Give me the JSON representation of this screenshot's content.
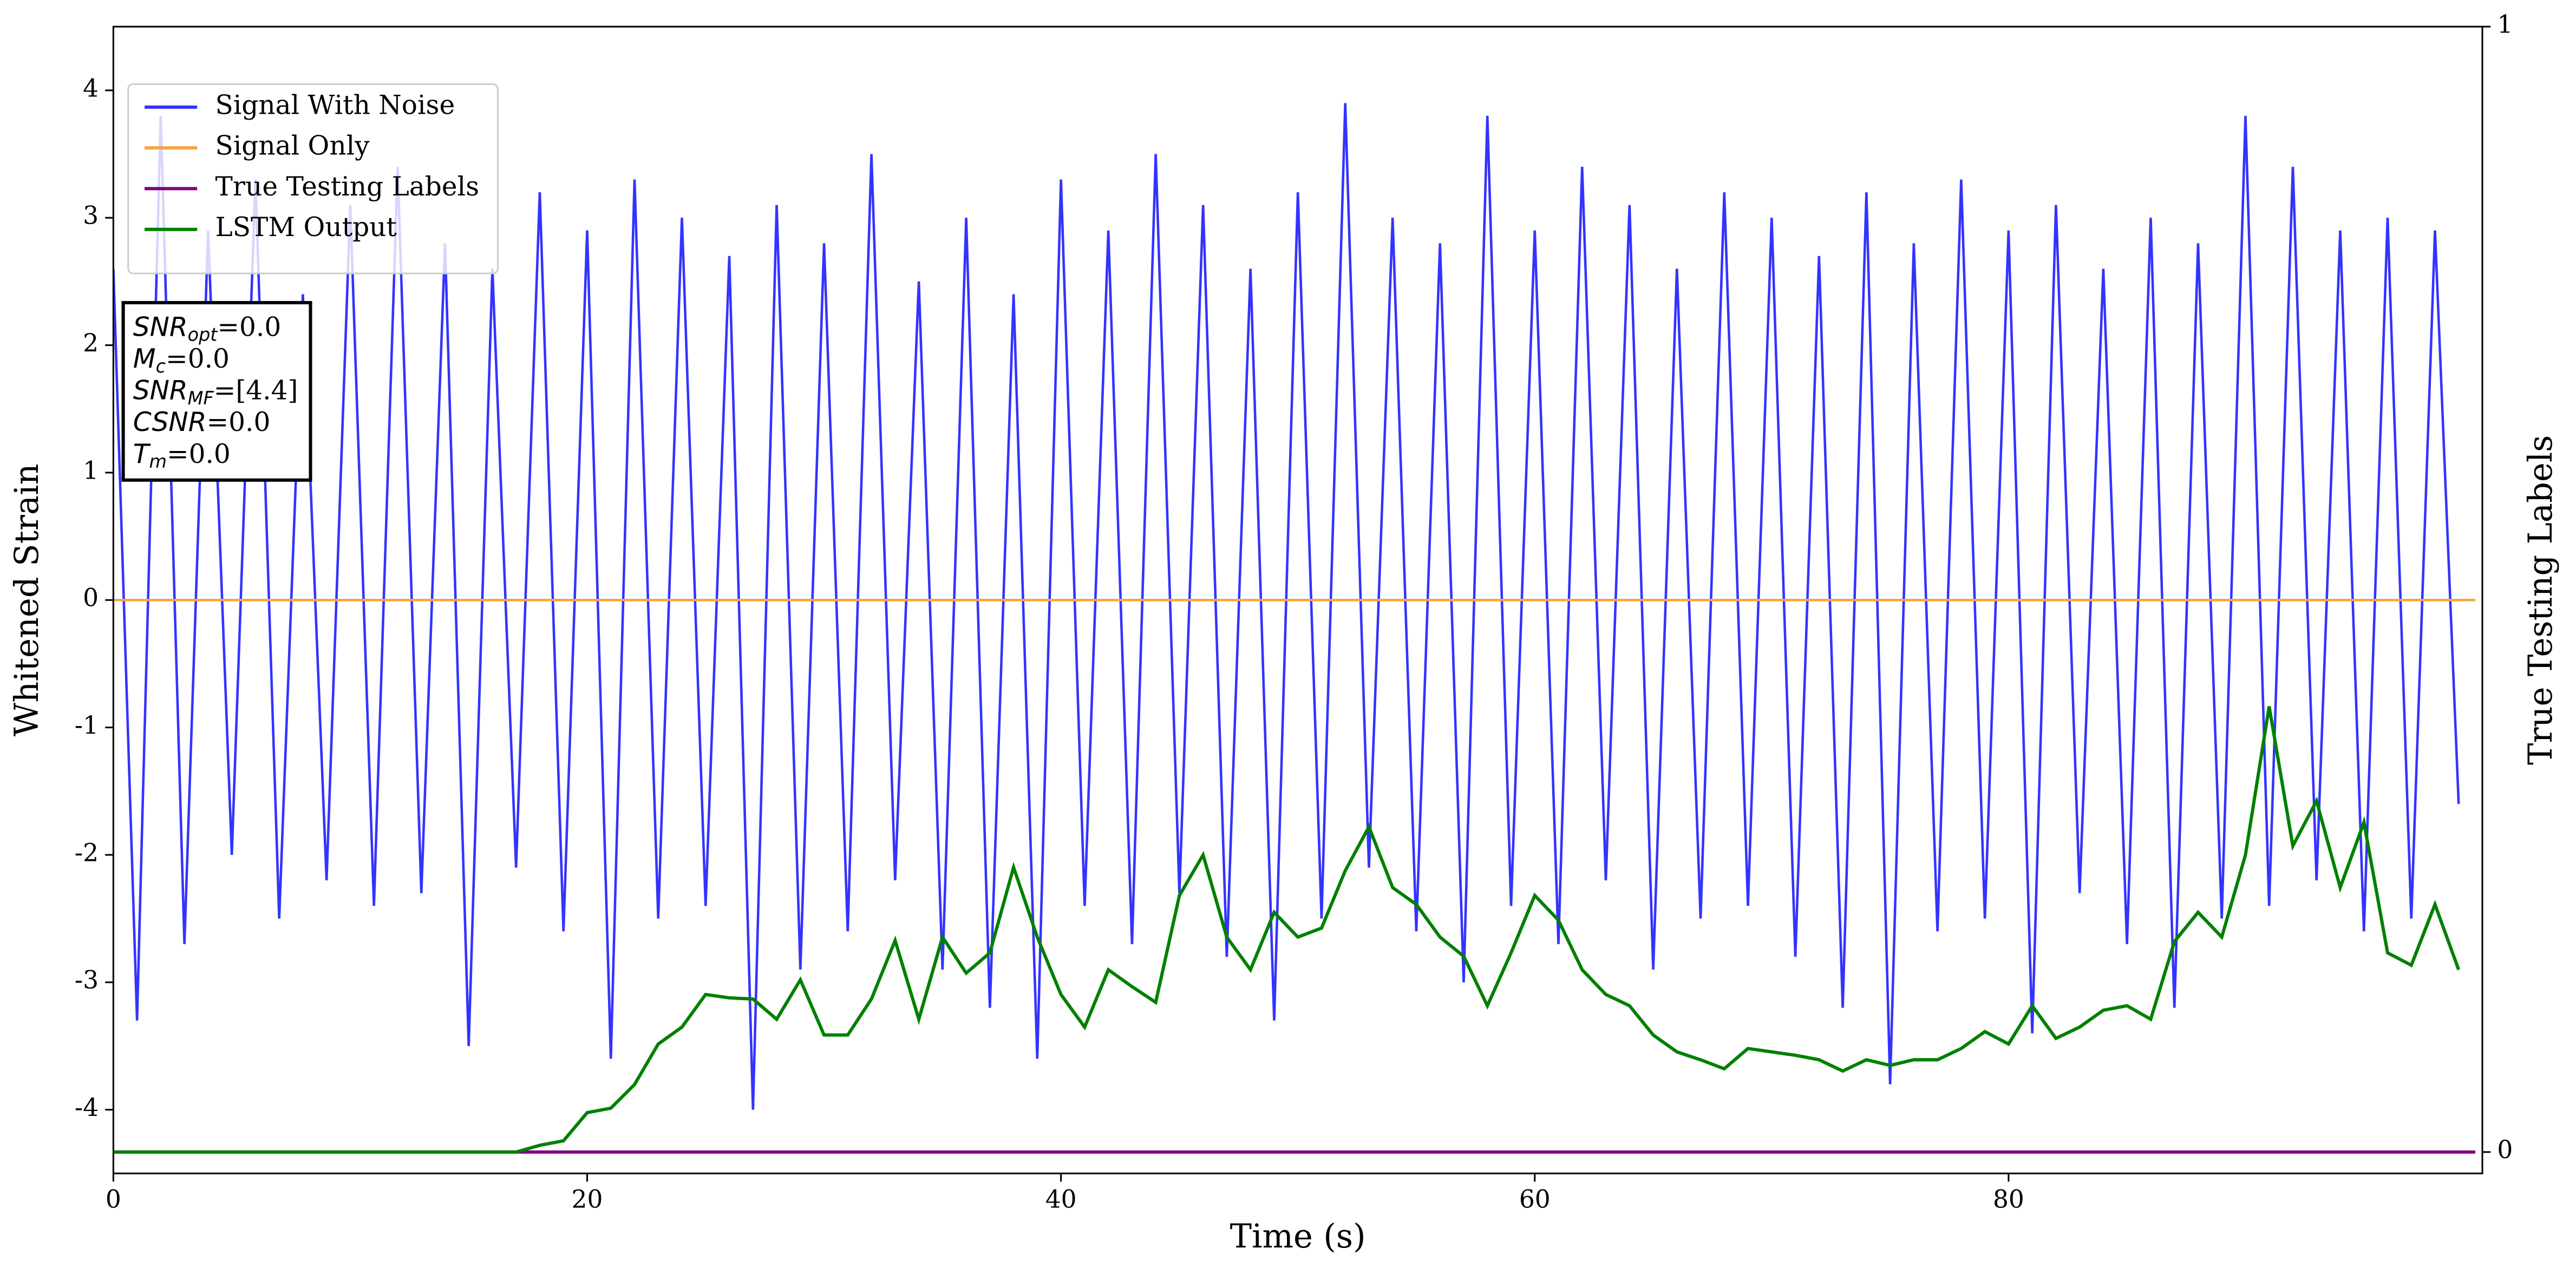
{
  "chart_data": {
    "type": "line",
    "x_label": "Time (s)",
    "y_label": "Whitened Strain",
    "y2_label": "True Testing Labels",
    "xlim": [
      0,
      100
    ],
    "xticks": [
      0,
      20,
      40,
      60,
      80
    ],
    "ylim": [
      -4.5,
      4.5
    ],
    "yticks": [
      -4,
      -3,
      -2,
      -1,
      0,
      1,
      2,
      3,
      4
    ],
    "y2lim": [
      -0.019,
      1
    ],
    "y2ticks": [
      0,
      1
    ],
    "grid": false,
    "legend": "upper left",
    "annotations": [
      {
        "symbol": "SNR",
        "subscript": "opt",
        "text": "=0.0"
      },
      {
        "symbol": "M",
        "subscript": "c",
        "text": "=0.0"
      },
      {
        "symbol": "SNR",
        "subscript": "MF",
        "text": "=[4.4]"
      },
      {
        "symbol": "CSNR",
        "text": "=0.0"
      },
      {
        "symbol": "T",
        "subscript": "m",
        "text": "=0.0"
      }
    ],
    "series": [
      {
        "name": "Signal With Noise",
        "color": "#3333ff",
        "axis": "y",
        "x": [
          0,
          1,
          2,
          3,
          4,
          5,
          6,
          7,
          8,
          9,
          10,
          11,
          12,
          13,
          14,
          15,
          16,
          17,
          18,
          19,
          20,
          21,
          22,
          23,
          24,
          25,
          26,
          27,
          28,
          29,
          30,
          31,
          32,
          33,
          34,
          35,
          36,
          37,
          38,
          39,
          40,
          41,
          42,
          43,
          44,
          45,
          46,
          47,
          48,
          49,
          50,
          51,
          52,
          53,
          54,
          55,
          56,
          57,
          58,
          59,
          60,
          61,
          62,
          63,
          64,
          65,
          66,
          67,
          68,
          69,
          70,
          71,
          72,
          73,
          74,
          75,
          76,
          77,
          78,
          79,
          80,
          81,
          82,
          83,
          84,
          85,
          86,
          87,
          88,
          89,
          90,
          91,
          92,
          93,
          94,
          95,
          96,
          97,
          98,
          99
        ],
        "values": [
          2.6,
          -3.3,
          3.8,
          -2.7,
          2.9,
          -2.0,
          3.3,
          -2.5,
          2.4,
          -2.2,
          3.1,
          -2.4,
          3.4,
          -2.3,
          2.8,
          -3.5,
          2.6,
          -2.1,
          3.2,
          -2.6,
          2.9,
          -3.6,
          3.3,
          -2.5,
          3.0,
          -2.4,
          2.7,
          -4.0,
          3.1,
          -2.9,
          2.8,
          -2.6,
          3.5,
          -2.2,
          2.5,
          -2.9,
          3.0,
          -3.2,
          2.4,
          -3.6,
          3.3,
          -2.4,
          2.9,
          -2.7,
          3.5,
          -2.3,
          3.1,
          -2.8,
          2.6,
          -3.3,
          3.2,
          -2.5,
          3.9,
          -2.1,
          3.0,
          -2.6,
          2.8,
          -3.0,
          3.8,
          -2.4,
          2.9,
          -2.7,
          3.4,
          -2.2,
          3.1,
          -2.9,
          2.6,
          -2.5,
          3.2,
          -2.4,
          3.0,
          -2.8,
          2.7,
          -3.2,
          3.2,
          -3.8,
          2.8,
          -2.6,
          3.3,
          -2.5,
          2.9,
          -3.4,
          3.1,
          -2.3,
          2.6,
          -2.7,
          3.0,
          -3.2,
          2.8,
          -2.5,
          3.8,
          -2.4,
          3.4,
          -2.2,
          2.9,
          -2.6,
          3.0,
          -2.5,
          2.9,
          -1.6
        ]
      },
      {
        "name": "Signal Only",
        "color": "#f5a53f",
        "axis": "y",
        "x": [
          0,
          99.7
        ],
        "values": [
          0,
          0
        ]
      },
      {
        "name": "True Testing Labels",
        "color": "#800080",
        "axis": "y2",
        "x": [
          0,
          99.7
        ],
        "values": [
          0,
          0
        ]
      },
      {
        "name": "LSTM Output",
        "color": "#008000",
        "axis": "y2",
        "x": [
          0,
          1,
          2,
          3,
          4,
          5,
          6,
          7,
          8,
          9,
          10,
          11,
          12,
          13,
          14,
          15,
          16,
          17,
          18,
          19,
          20,
          21,
          22,
          23,
          24,
          25,
          26,
          27,
          28,
          29,
          30,
          31,
          32,
          33,
          34,
          35,
          36,
          37,
          38,
          39,
          40,
          41,
          42,
          43,
          44,
          45,
          46,
          47,
          48,
          49,
          50,
          51,
          52,
          53,
          54,
          55,
          56,
          57,
          58,
          59,
          60,
          61,
          62,
          63,
          64,
          65,
          66,
          67,
          68,
          69,
          70,
          71,
          72,
          73,
          74,
          75,
          76,
          77,
          78,
          79,
          80,
          81,
          82,
          83,
          84,
          85,
          86,
          87,
          88,
          89,
          90,
          91,
          92,
          93,
          94,
          95,
          96,
          97,
          98,
          99
        ],
        "values": [
          0,
          0,
          0,
          0,
          0,
          0,
          0,
          0,
          0,
          0,
          0,
          0,
          0,
          0,
          0,
          0,
          0,
          0,
          0.006,
          0.01,
          0.035,
          0.039,
          0.06,
          0.096,
          0.111,
          0.14,
          0.137,
          0.136,
          0.118,
          0.153,
          0.104,
          0.104,
          0.136,
          0.188,
          0.118,
          0.191,
          0.159,
          0.177,
          0.253,
          0.191,
          0.14,
          0.111,
          0.162,
          0.147,
          0.133,
          0.228,
          0.264,
          0.191,
          0.162,
          0.213,
          0.191,
          0.199,
          0.25,
          0.289,
          0.235,
          0.22,
          0.191,
          0.174,
          0.13,
          0.177,
          0.228,
          0.206,
          0.162,
          0.14,
          0.13,
          0.104,
          0.089,
          0.082,
          0.074,
          0.092,
          0.089,
          0.086,
          0.082,
          0.072,
          0.082,
          0.077,
          0.082,
          0.082,
          0.092,
          0.107,
          0.096,
          0.13,
          0.101,
          0.111,
          0.126,
          0.13,
          0.118,
          0.187,
          0.213,
          0.191,
          0.264,
          0.396,
          0.272,
          0.312,
          0.235,
          0.293,
          0.177,
          0.166,
          0.22,
          0.162
        ]
      }
    ]
  }
}
